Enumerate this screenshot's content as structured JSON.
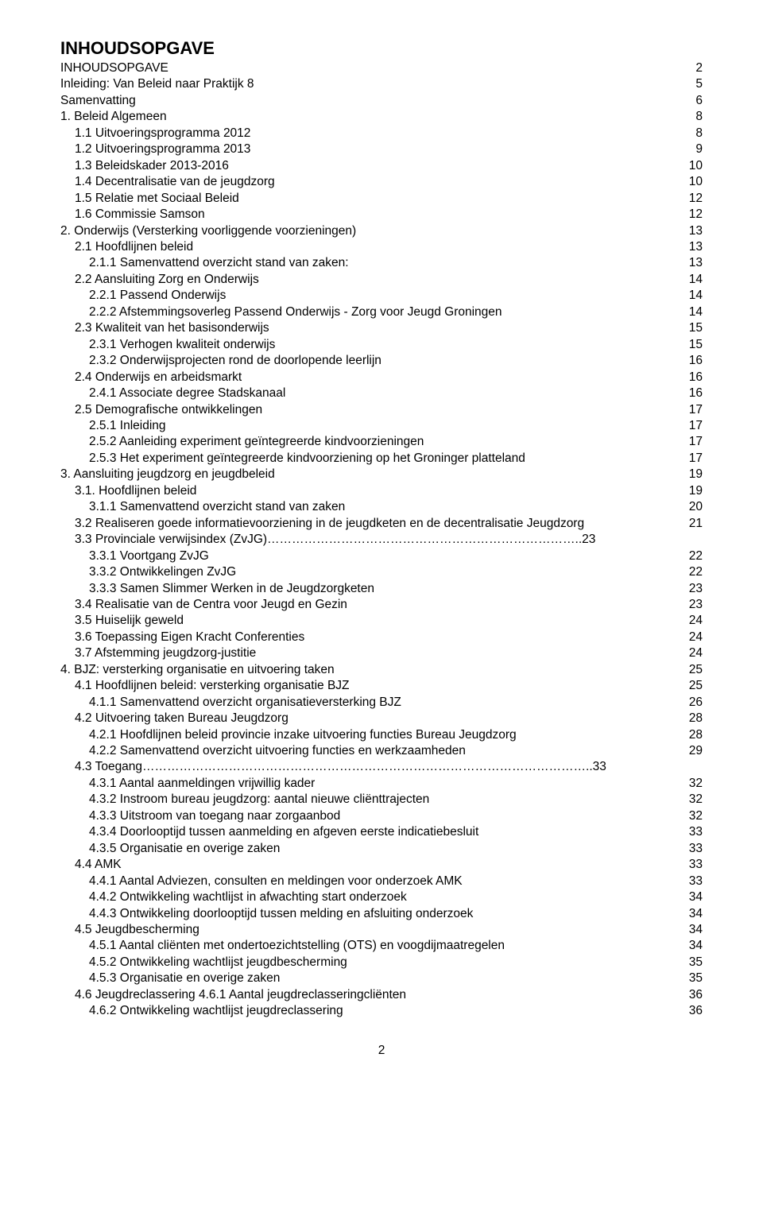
{
  "title": "INHOUDSOPGAVE",
  "footer_page": "2",
  "toc": [
    {
      "indent": 0,
      "label": "INHOUDSOPGAVE",
      "page": "2",
      "dots": true
    },
    {
      "indent": 0,
      "label": "Inleiding: Van Beleid naar Praktijk 8",
      "page": "5",
      "dots": true
    },
    {
      "indent": 0,
      "label": "Samenvatting",
      "page": "6",
      "dots": true
    },
    {
      "indent": 0,
      "label": "1. Beleid Algemeen",
      "page": "8",
      "dots": true
    },
    {
      "indent": 1,
      "label": "1.1 Uitvoeringsprogramma 2012",
      "page": "8",
      "dots": true
    },
    {
      "indent": 1,
      "label": "1.2 Uitvoeringsprogramma 2013",
      "page": "9",
      "dots": true
    },
    {
      "indent": 1,
      "label": "1.3 Beleidskader 2013-2016",
      "page": "10",
      "dots": true
    },
    {
      "indent": 1,
      "label": "1.4 Decentralisatie van de jeugdzorg",
      "page": "10",
      "dots": true
    },
    {
      "indent": 1,
      "label": "1.5 Relatie met Sociaal Beleid",
      "page": "12",
      "dots": true
    },
    {
      "indent": 1,
      "label": "1.6 Commissie Samson",
      "page": "12",
      "dots": true
    },
    {
      "indent": 0,
      "label": "2. Onderwijs (Versterking voorliggende voorzieningen)",
      "page": "13",
      "dots": true
    },
    {
      "indent": 1,
      "label": "2.1 Hoofdlijnen beleid",
      "page": "13",
      "dots": true
    },
    {
      "indent": 2,
      "label": "2.1.1 Samenvattend overzicht stand van zaken:",
      "page": "13",
      "dots": true
    },
    {
      "indent": 1,
      "label": "2.2 Aansluiting Zorg en Onderwijs",
      "page": "14",
      "dots": true
    },
    {
      "indent": 2,
      "label": "2.2.1 Passend Onderwijs",
      "page": "14",
      "dots": true
    },
    {
      "indent": 2,
      "label": "2.2.2 Afstemmingsoverleg Passend Onderwijs - Zorg voor Jeugd Groningen",
      "page": "14",
      "dots": true
    },
    {
      "indent": 1,
      "label": "2.3 Kwaliteit van het basisonderwijs",
      "page": "15",
      "dots": true
    },
    {
      "indent": 2,
      "label": "2.3.1 Verhogen kwaliteit onderwijs",
      "page": "15",
      "dots": true
    },
    {
      "indent": 2,
      "label": "2.3.2 Onderwijsprojecten rond de doorlopende leerlijn",
      "page": "16",
      "dots": true
    },
    {
      "indent": 1,
      "label": "2.4 Onderwijs en arbeidsmarkt",
      "page": "16",
      "dots": true
    },
    {
      "indent": 2,
      "label": "2.4.1 Associate degree Stadskanaal",
      "page": "16",
      "dots": true
    },
    {
      "indent": 1,
      "label": "2.5 Demografische ontwikkelingen",
      "page": "17",
      "dots": true
    },
    {
      "indent": 2,
      "label": "2.5.1 Inleiding",
      "page": "17",
      "dots": true
    },
    {
      "indent": 2,
      "label": "2.5.2 Aanleiding experiment geïntegreerde kindvoorzieningen",
      "page": "17",
      "dots": true
    },
    {
      "indent": 2,
      "label": "2.5.3 Het experiment geïntegreerde kindvoorziening op het Groninger platteland",
      "page": "17",
      "dots": true
    },
    {
      "indent": 0,
      "label": "3. Aansluiting jeugdzorg en jeugdbeleid",
      "page": "19",
      "dots": true
    },
    {
      "indent": 1,
      "label": "3.1. Hoofdlijnen beleid",
      "page": "19",
      "dots": true
    },
    {
      "indent": 2,
      "label": "3.1.1 Samenvattend overzicht stand van zaken",
      "page": "20",
      "dots": true
    },
    {
      "indent": 1,
      "label": "3.2 Realiseren goede informatievoorziening in de jeugdketen en de decentralisatie Jeugdzorg",
      "page": "21",
      "dots": true
    },
    {
      "indent": 1,
      "label": "3.3 Provinciale verwijsindex (ZvJG)…………………………………………………………………..23",
      "page": "",
      "dots": false
    },
    {
      "indent": 2,
      "label": "3.3.1 Voortgang ZvJG",
      "page": "22",
      "dots": true
    },
    {
      "indent": 2,
      "label": "3.3.2 Ontwikkelingen ZvJG",
      "page": "22",
      "dots": true
    },
    {
      "indent": 2,
      "label": "3.3.3 Samen Slimmer Werken in de Jeugdzorgketen",
      "page": "23",
      "dots": true
    },
    {
      "indent": 1,
      "label": "3.4 Realisatie van de Centra voor Jeugd en Gezin",
      "page": "23",
      "dots": true
    },
    {
      "indent": 1,
      "label": "3.5 Huiselijk geweld",
      "page": "24",
      "dots": true
    },
    {
      "indent": 1,
      "label": "3.6 Toepassing Eigen Kracht Conferenties",
      "page": "24",
      "dots": true
    },
    {
      "indent": 1,
      "label": "3.7 Afstemming jeugdzorg-justitie",
      "page": "24",
      "dots": true
    },
    {
      "indent": 0,
      "label": "4. BJZ: versterking organisatie en uitvoering taken",
      "page": "25",
      "dots": true
    },
    {
      "indent": 1,
      "label": "4.1 Hoofdlijnen beleid: versterking organisatie BJZ",
      "page": "25",
      "dots": true
    },
    {
      "indent": 2,
      "label": "4.1.1 Samenvattend overzicht organisatieversterking BJZ",
      "page": "26",
      "dots": true
    },
    {
      "indent": 1,
      "label": "4.2 Uitvoering taken Bureau Jeugdzorg",
      "page": "28",
      "dots": true
    },
    {
      "indent": 2,
      "label": "4.2.1 Hoofdlijnen beleid provincie inzake uitvoering functies Bureau Jeugdzorg",
      "page": "28",
      "dots": true
    },
    {
      "indent": 2,
      "label": "4.2.2 Samenvattend overzicht uitvoering functies en werkzaamheden",
      "page": "29",
      "dots": true
    },
    {
      "indent": 1,
      "label": "4.3 Toegang………………………………………………………………………………………………..33",
      "page": "",
      "dots": false
    },
    {
      "indent": 2,
      "label": "4.3.1 Aantal aanmeldingen vrijwillig kader",
      "page": "32",
      "dots": true
    },
    {
      "indent": 2,
      "label": "4.3.2 Instroom bureau jeugdzorg: aantal nieuwe cliënttrajecten",
      "page": "32",
      "dots": true
    },
    {
      "indent": 2,
      "label": "4.3.3 Uitstroom van toegang naar zorgaanbod",
      "page": "32",
      "dots": true
    },
    {
      "indent": 2,
      "label": "4.3.4 Doorlooptijd tussen aanmelding en afgeven eerste indicatiebesluit",
      "page": "33",
      "dots": true
    },
    {
      "indent": 2,
      "label": "4.3.5 Organisatie en overige zaken",
      "page": "33",
      "dots": true
    },
    {
      "indent": 1,
      "label": "4.4 AMK",
      "page": "33",
      "dots": true
    },
    {
      "indent": 2,
      "label": "4.4.1 Aantal Adviezen, consulten en meldingen voor onderzoek AMK",
      "page": "33",
      "dots": true
    },
    {
      "indent": 2,
      "label": "4.4.2 Ontwikkeling wachtlijst in afwachting start onderzoek",
      "page": "34",
      "dots": true
    },
    {
      "indent": 2,
      "label": "4.4.3 Ontwikkeling doorlooptijd tussen melding en afsluiting onderzoek",
      "page": "34",
      "dots": true
    },
    {
      "indent": 1,
      "label": "4.5 Jeugdbescherming",
      "page": "34",
      "dots": true
    },
    {
      "indent": 2,
      "label": "4.5.1 Aantal cliënten met ondertoezichtstelling (OTS) en voogdijmaatregelen",
      "page": "34",
      "dots": true
    },
    {
      "indent": 2,
      "label": "4.5.2 Ontwikkeling wachtlijst jeugdbescherming",
      "page": "35",
      "dots": true
    },
    {
      "indent": 2,
      "label": "4.5.3 Organisatie en overige zaken",
      "page": "35",
      "dots": true
    },
    {
      "indent": 1,
      "label": "4.6 Jeugdreclassering  4.6.1 Aantal jeugdreclasseringcliënten",
      "page": "36",
      "dots": true
    },
    {
      "indent": 2,
      "label": "4.6.2 Ontwikkeling wachtlijst jeugdreclassering",
      "page": "36",
      "dots": true
    }
  ]
}
